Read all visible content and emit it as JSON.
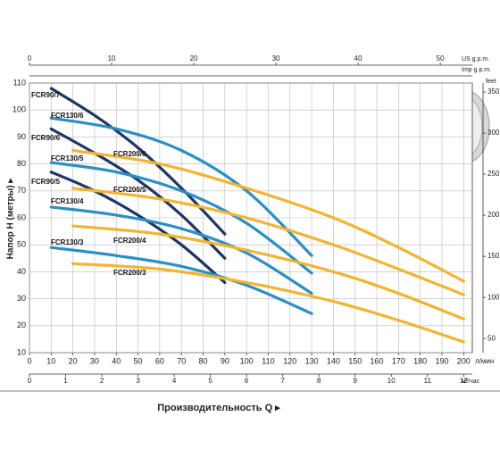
{
  "chart_data": {
    "type": "line",
    "y_label": "Напор H  (метры)  ▸",
    "x_label": "Производительность Q  ▸",
    "x_unit": "л/мин",
    "xlim": [
      0,
      204
    ],
    "xticks": [
      0,
      10,
      20,
      30,
      40,
      50,
      60,
      70,
      80,
      90,
      100,
      110,
      120,
      130,
      140,
      150,
      160,
      170,
      180,
      190,
      200
    ],
    "ylim": [
      10,
      110
    ],
    "yticks": [
      10,
      20,
      30,
      40,
      50,
      60,
      70,
      80,
      90,
      100,
      110
    ],
    "grid": true,
    "secondary_axes": [
      {
        "label": "м³/час",
        "position": "bottom",
        "lim": [
          0,
          12.24
        ],
        "ticks": [
          0,
          1,
          2,
          3,
          4,
          5,
          6,
          7,
          8,
          9,
          10,
          11,
          12
        ]
      },
      {
        "label": "US g.p.m.",
        "position": "top",
        "lim": [
          0,
          53.9
        ],
        "ticks": [
          0,
          10,
          20,
          30,
          40,
          50
        ]
      },
      {
        "label": "Imp g.p.m.",
        "position": "top2",
        "lim": [
          0,
          44.9
        ],
        "ticks": []
      },
      {
        "label": "feet",
        "position": "right",
        "lim": [
          32.8,
          360.9
        ],
        "ticks": [
          50,
          100,
          150,
          200,
          250,
          300,
          350
        ]
      }
    ],
    "series": [
      {
        "name": "FCR90/7",
        "color": "#1b3766",
        "x": [
          10,
          30,
          50,
          70,
          90
        ],
        "values": [
          108,
          98,
          86,
          71,
          54
        ]
      },
      {
        "name": "FCR90/6",
        "color": "#1b3766",
        "x": [
          10,
          30,
          50,
          70,
          90
        ],
        "values": [
          93,
          84,
          74,
          61,
          45
        ]
      },
      {
        "name": "FCR90/5",
        "color": "#1b3766",
        "x": [
          10,
          30,
          50,
          70,
          90
        ],
        "values": [
          77,
          70,
          61,
          50,
          36
        ]
      },
      {
        "name": "FCR130/6",
        "color": "#2b8fc4",
        "x": [
          10,
          40,
          70,
          100,
          130
        ],
        "values": [
          97,
          93,
          85,
          70,
          46
        ]
      },
      {
        "name": "FCR130/5",
        "color": "#2b8fc4",
        "x": [
          10,
          40,
          70,
          100,
          130
        ],
        "values": [
          80.5,
          77,
          70,
          58,
          39.5
        ]
      },
      {
        "name": "FCR130/4",
        "color": "#2b8fc4",
        "x": [
          10,
          40,
          70,
          100,
          130
        ],
        "values": [
          64,
          61,
          56,
          47,
          32
        ]
      },
      {
        "name": "FCR130/3",
        "color": "#2b8fc4",
        "x": [
          10,
          40,
          70,
          100,
          130
        ],
        "values": [
          49,
          46,
          42,
          35,
          24.5
        ]
      },
      {
        "name": "FCR200/6",
        "color": "#f2b431",
        "x": [
          20,
          60,
          100,
          140,
          170,
          200
        ],
        "values": [
          85,
          80,
          71,
          60,
          49,
          36.5
        ]
      },
      {
        "name": "FCR200/5",
        "color": "#f2b431",
        "x": [
          20,
          60,
          100,
          140,
          170,
          200
        ],
        "values": [
          71,
          67,
          60,
          50,
          41,
          31.5
        ]
      },
      {
        "name": "FCR200/4",
        "color": "#f2b431",
        "x": [
          20,
          60,
          100,
          140,
          170,
          200
        ],
        "values": [
          57,
          54,
          48,
          40,
          32,
          22.5
        ]
      },
      {
        "name": "FCR200/3",
        "color": "#f2b431",
        "x": [
          20,
          60,
          100,
          140,
          170,
          200
        ],
        "values": [
          43,
          41,
          36,
          29,
          22,
          14
        ]
      }
    ]
  }
}
